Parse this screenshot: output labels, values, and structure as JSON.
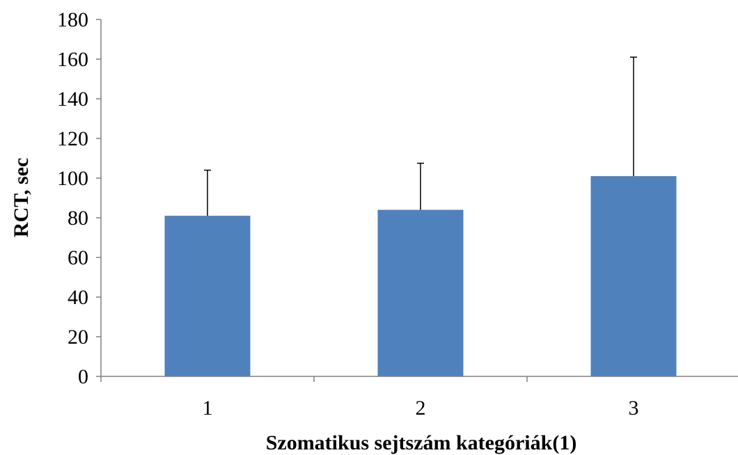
{
  "chart_data": {
    "type": "bar",
    "categories": [
      "1",
      "2",
      "3"
    ],
    "values": [
      81,
      84,
      101
    ],
    "error_plus": [
      23,
      23.5,
      60
    ],
    "title": "",
    "xlabel": "Szomatikus sejtszám kategóriák(1)",
    "ylabel": "RCT, sec",
    "ylim": [
      0,
      180
    ],
    "yticks": [
      "0",
      "20",
      "40",
      "60",
      "80",
      "100",
      "120",
      "140",
      "160",
      "180"
    ],
    "grid": false,
    "legend": "none",
    "bar_color": "#4F81BD"
  }
}
